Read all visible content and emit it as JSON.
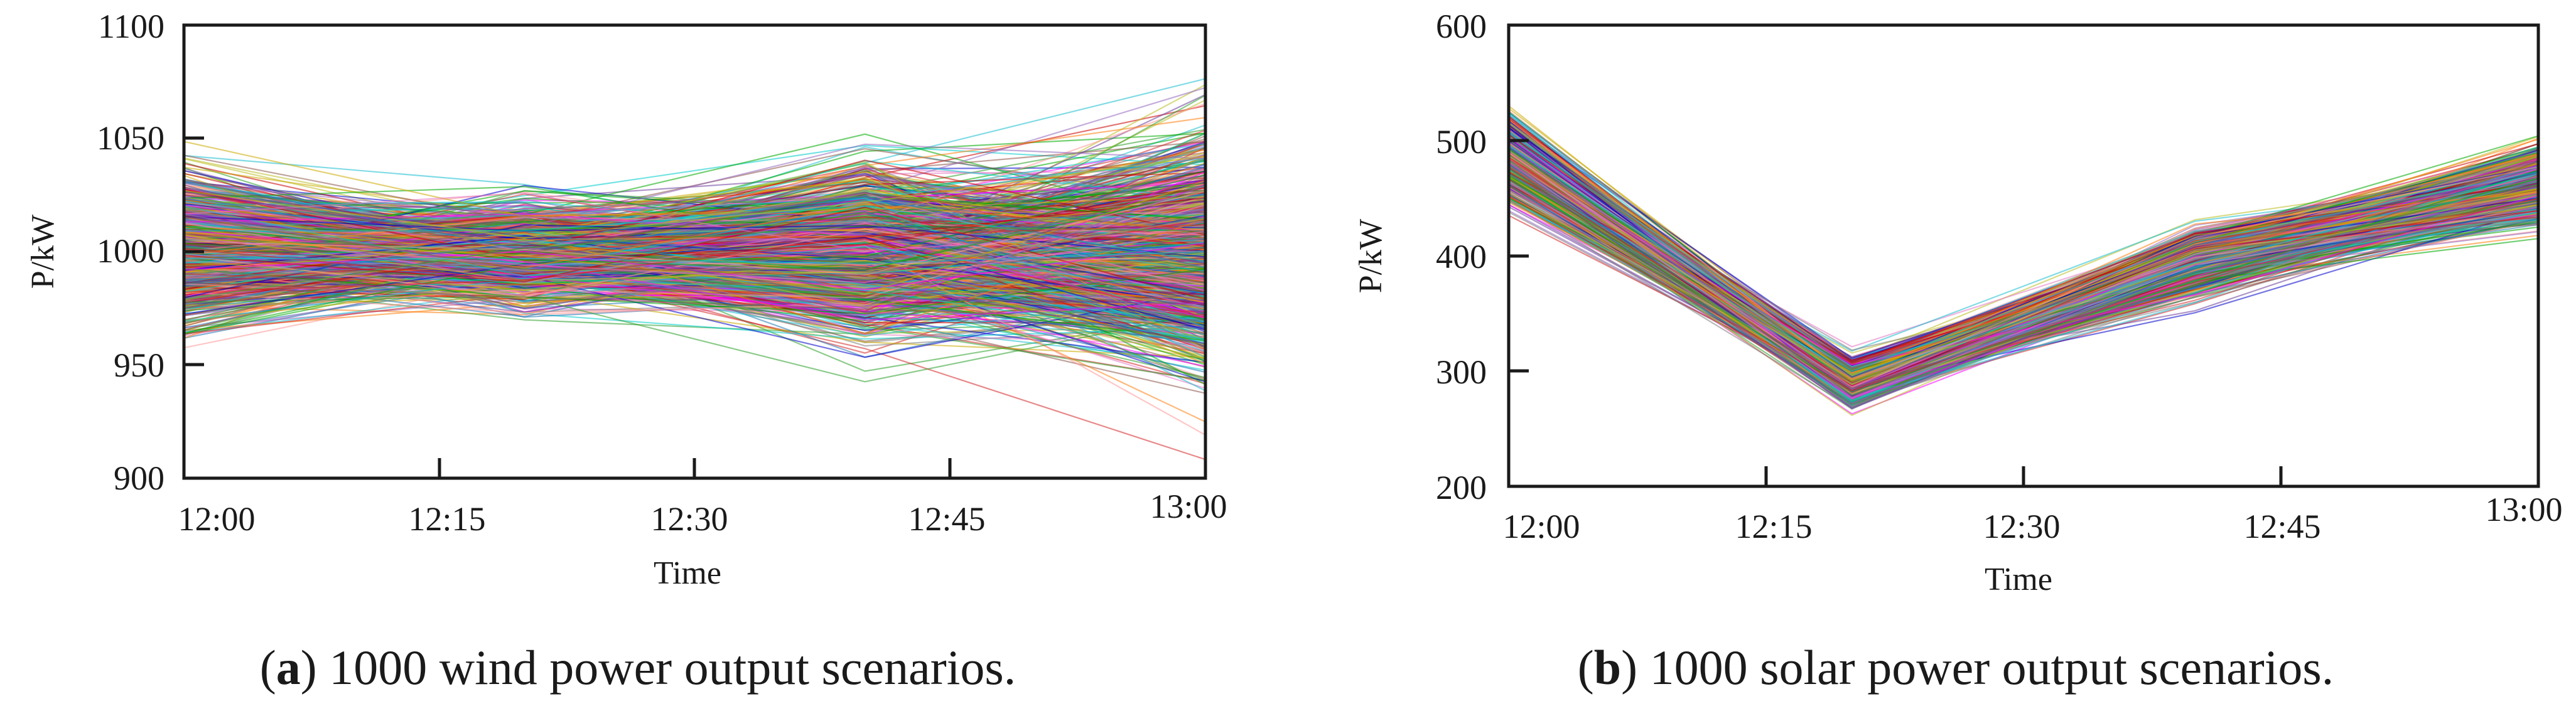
{
  "chart_data": [
    {
      "type": "line",
      "panel": "a",
      "caption_letter": "a",
      "caption_text": " 1000 wind power output scenarios.",
      "xlabel": "Time",
      "ylabel": "P/kW",
      "x_tick_labels": [
        "12:00",
        "12:15",
        "12:30",
        "12:45",
        "13:00"
      ],
      "x_points": [
        0,
        20,
        40,
        60
      ],
      "x_range": [
        0,
        60
      ],
      "y_ticks": [
        900,
        950,
        1000,
        1050,
        1100
      ],
      "ylim": [
        900,
        1100
      ],
      "scenario_count": 1000,
      "series_center": [
        1000,
        1000,
        1000,
        1000
      ],
      "series_spread": [
        30,
        20,
        35,
        50
      ],
      "grid": false,
      "legend": "none"
    },
    {
      "type": "line",
      "panel": "b",
      "caption_letter": "b",
      "caption_text": " 1000 solar power output scenarios.",
      "xlabel": "Time",
      "ylabel": "P/kW",
      "x_tick_labels": [
        "12:00",
        "12:15",
        "12:30",
        "12:45",
        "13:00"
      ],
      "x_points": [
        0,
        20,
        40,
        60
      ],
      "x_range": [
        0,
        60
      ],
      "y_ticks": [
        200,
        300,
        400,
        500,
        600
      ],
      "ylim": [
        200,
        600
      ],
      "scenario_count": 1000,
      "series_center": [
        485,
        290,
        395,
        460
      ],
      "series_spread": [
        30,
        18,
        25,
        28
      ],
      "grid": false,
      "legend": "none"
    }
  ],
  "palette": [
    "#1f77b4",
    "#ff7f0e",
    "#2ca02c",
    "#d62728",
    "#9467bd",
    "#8c564b",
    "#e377c2",
    "#7f7f7f",
    "#bcbd22",
    "#17becf",
    "#0000cc",
    "#cc0000",
    "#00aa00",
    "#ff00ff",
    "#00cccc",
    "#ccaa00",
    "#6a3d9a",
    "#ff9896"
  ]
}
